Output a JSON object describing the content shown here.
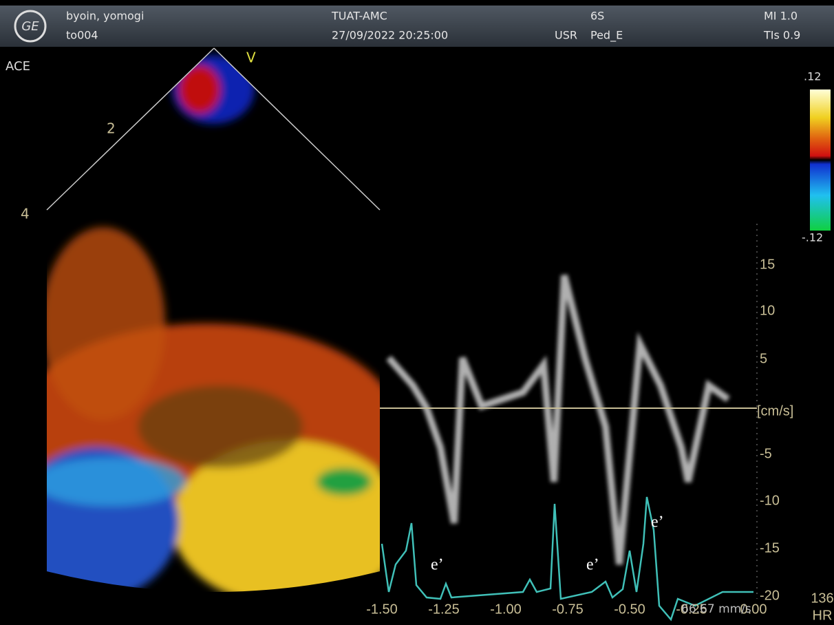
{
  "header": {
    "patient": "byoin, yomogi",
    "id": "to004",
    "site": "TUAT-AMC",
    "datetime": "27/09/2022 20:25:00",
    "user": "USR",
    "probe": "6S",
    "preset": "Ped_E",
    "mi": "MI 1.0",
    "tis": "TIs 0.9"
  },
  "image": {
    "mode": "ACE",
    "marker": "V",
    "depth_labels": [
      "2",
      "4"
    ],
    "scale_max": ".12",
    "scale_min": "-.12"
  },
  "doppler": {
    "y_ticks": [
      "15",
      "10",
      "5",
      "-5",
      "-10",
      "-15",
      "-20"
    ],
    "unit": "[cm/s]",
    "x_ticks": [
      "-1.50",
      "-1.25",
      "-1.00",
      "-0.75",
      "-0.50",
      "-0.25",
      "0.00"
    ],
    "sweep": "66.67 mm/s",
    "hr_value": "136",
    "hr_label": "HR",
    "annotations": [
      "e’",
      "e’",
      "e’"
    ]
  }
}
